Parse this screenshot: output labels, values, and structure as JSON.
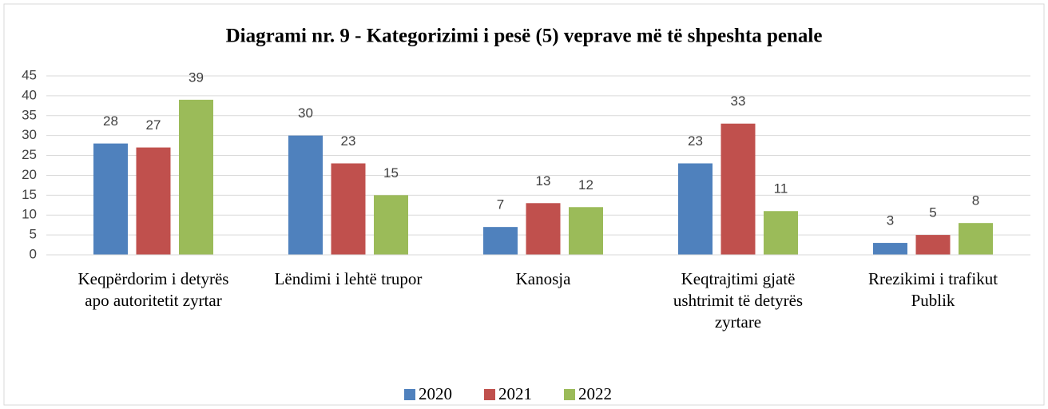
{
  "chart_data": {
    "type": "bar",
    "title": "Diagrami nr. 9 - Kategorizimi i pesë (5) veprave më të shpeshta penale",
    "categories": [
      "Keqpërdorim i detyrës  apo autoritetit zyrtar",
      "Lëndimi i lehtë trupor",
      "Kanosja",
      "Keqtrajtimi gjatë ushtrimit të detyrës zyrtare",
      "Rrezikimi i trafikut Publik"
    ],
    "series": [
      {
        "name": "2020",
        "color": "#4f81bd",
        "values": [
          28,
          30,
          7,
          23,
          3
        ]
      },
      {
        "name": "2021",
        "color": "#c0504d",
        "values": [
          27,
          23,
          13,
          33,
          5
        ]
      },
      {
        "name": "2022",
        "color": "#9bbb59",
        "values": [
          39,
          15,
          12,
          11,
          8
        ]
      }
    ],
    "ylim": [
      0,
      45
    ],
    "yticks": [
      0,
      5,
      10,
      15,
      20,
      25,
      30,
      35,
      40,
      45
    ],
    "grid": true,
    "legend": "bottom"
  }
}
